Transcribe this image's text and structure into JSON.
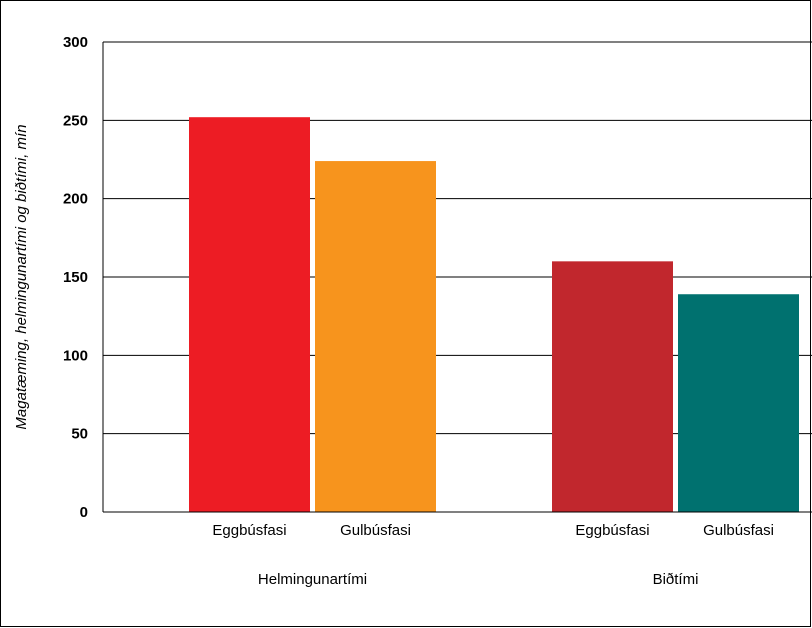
{
  "chart_data": {
    "type": "bar",
    "title": "",
    "xlabel": "",
    "ylabel": "Magatæming, helmingunartími og biðtími, mín",
    "ylim": [
      0,
      300
    ],
    "yticks": [
      0,
      50,
      100,
      150,
      200,
      250,
      300
    ],
    "grid": true,
    "groups": [
      {
        "label": "Helmingunartími",
        "bars": [
          {
            "label": "Eggbúsfasi",
            "value": 252,
            "color": "#ed1c24"
          },
          {
            "label": "Gulbúsfasi",
            "value": 224,
            "color": "#f7941d"
          }
        ]
      },
      {
        "label": "Biðtími",
        "bars": [
          {
            "label": "Eggbúsfasi",
            "value": 160,
            "color": "#c1272d"
          },
          {
            "label": "Gulbúsfasi",
            "value": 139,
            "color": "#00716f"
          }
        ]
      }
    ]
  }
}
